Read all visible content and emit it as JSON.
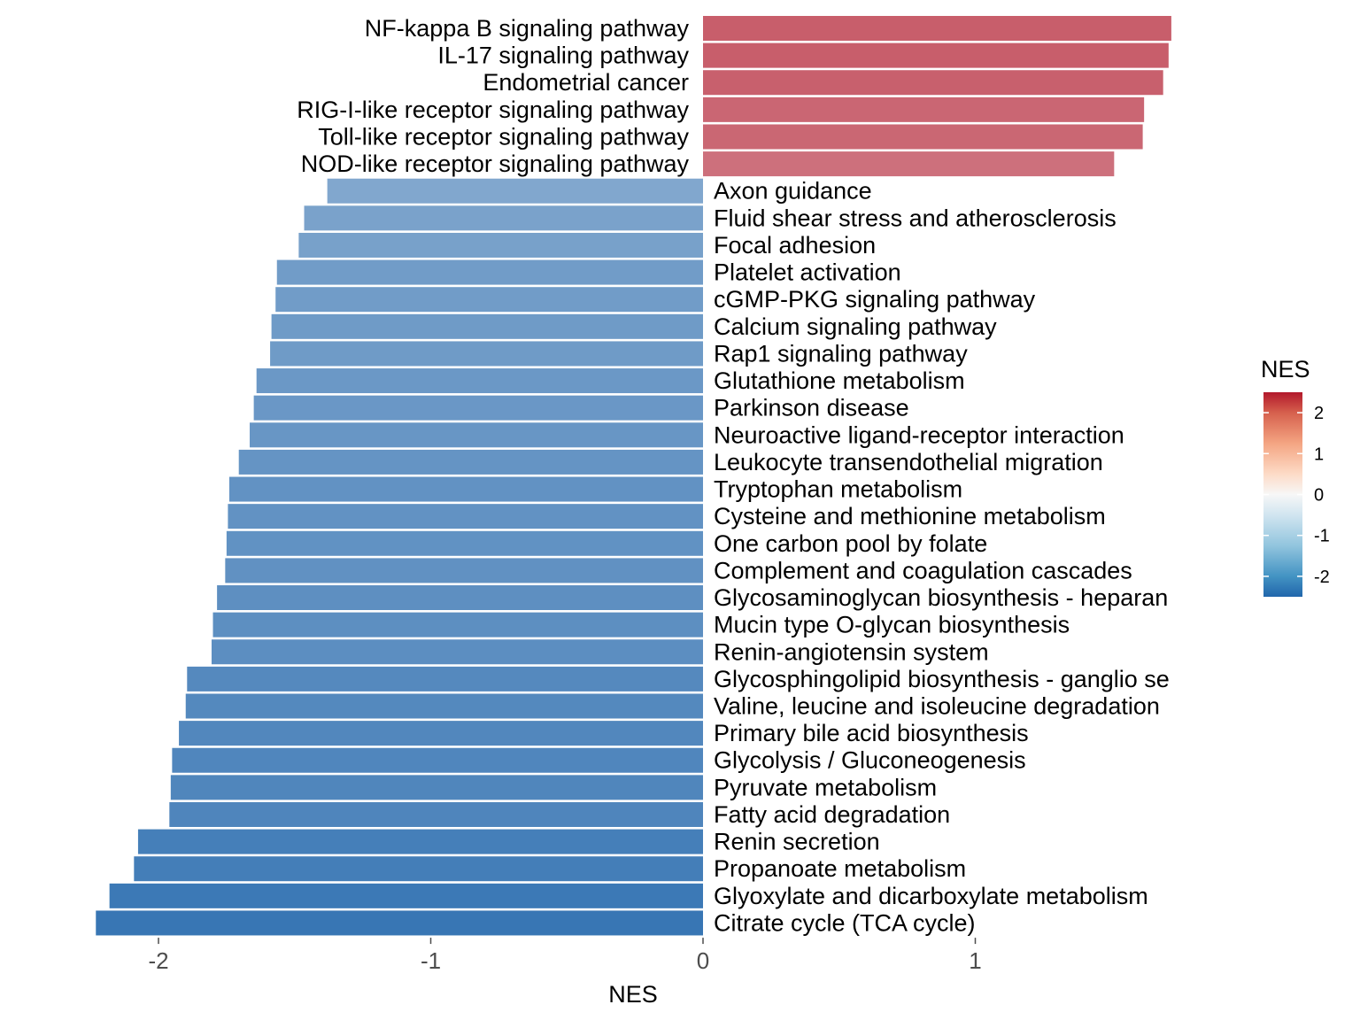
{
  "chart_data": {
    "type": "bar",
    "orientation": "horizontal",
    "xlabel": "NES",
    "xlim": [
      -2.27,
      1.95
    ],
    "x_ticks": [
      -2,
      -1,
      0,
      1
    ],
    "grid": false,
    "color_scale": {
      "title": "NES",
      "range": [
        -2.5,
        2.5
      ],
      "ticks": [
        2,
        1,
        0,
        -1,
        -2
      ],
      "low_color": "#2166ac",
      "mid_color": "#f7f7f7",
      "high_color": "#b2182b"
    },
    "legend_position": "right",
    "bars": [
      {
        "pathway": "NF-kappa B signaling pathway",
        "nes": 1.72
      },
      {
        "pathway": "IL-17 signaling pathway",
        "nes": 1.71
      },
      {
        "pathway": "Endometrial cancer",
        "nes": 1.69
      },
      {
        "pathway": "RIG-I-like receptor signaling pathway",
        "nes": 1.62
      },
      {
        "pathway": "Toll-like receptor signaling pathway",
        "nes": 1.615
      },
      {
        "pathway": "NOD-like receptor signaling pathway",
        "nes": 1.51
      },
      {
        "pathway": "Axon guidance",
        "nes": -1.38
      },
      {
        "pathway": "Fluid shear stress and atherosclerosis",
        "nes": -1.465
      },
      {
        "pathway": "Focal adhesion",
        "nes": -1.485
      },
      {
        "pathway": "Platelet activation",
        "nes": -1.565
      },
      {
        "pathway": "cGMP-PKG signaling pathway",
        "nes": -1.57
      },
      {
        "pathway": "Calcium signaling pathway",
        "nes": -1.585
      },
      {
        "pathway": "Rap1 signaling pathway",
        "nes": -1.59
      },
      {
        "pathway": "Glutathione metabolism",
        "nes": -1.64
      },
      {
        "pathway": "Parkinson disease",
        "nes": -1.65
      },
      {
        "pathway": "Neuroactive ligand-receptor interaction",
        "nes": -1.665
      },
      {
        "pathway": "Leukocyte transendothelial migration",
        "nes": -1.705
      },
      {
        "pathway": "Tryptophan metabolism",
        "nes": -1.74
      },
      {
        "pathway": "Cysteine and methionine metabolism",
        "nes": -1.745
      },
      {
        "pathway": "One carbon pool by folate",
        "nes": -1.75
      },
      {
        "pathway": "Complement and coagulation cascades",
        "nes": -1.755
      },
      {
        "pathway": "Glycosaminoglycan biosynthesis - heparan",
        "nes": -1.785
      },
      {
        "pathway": "Mucin type O-glycan biosynthesis",
        "nes": -1.8
      },
      {
        "pathway": "Renin-angiotensin system",
        "nes": -1.805
      },
      {
        "pathway": "Glycosphingolipid biosynthesis - ganglio se",
        "nes": -1.895
      },
      {
        "pathway": "Valine, leucine and isoleucine degradation",
        "nes": -1.9
      },
      {
        "pathway": "Primary bile acid biosynthesis",
        "nes": -1.925
      },
      {
        "pathway": "Glycolysis / Gluconeogenesis",
        "nes": -1.95
      },
      {
        "pathway": "Pyruvate metabolism",
        "nes": -1.955
      },
      {
        "pathway": "Fatty acid degradation",
        "nes": -1.96
      },
      {
        "pathway": "Renin secretion",
        "nes": -2.075
      },
      {
        "pathway": "Propanoate metabolism",
        "nes": -2.09
      },
      {
        "pathway": "Glyoxylate and dicarboxylate metabolism",
        "nes": -2.18
      },
      {
        "pathway": "Citrate cycle (TCA cycle)",
        "nes": -2.23
      }
    ]
  }
}
